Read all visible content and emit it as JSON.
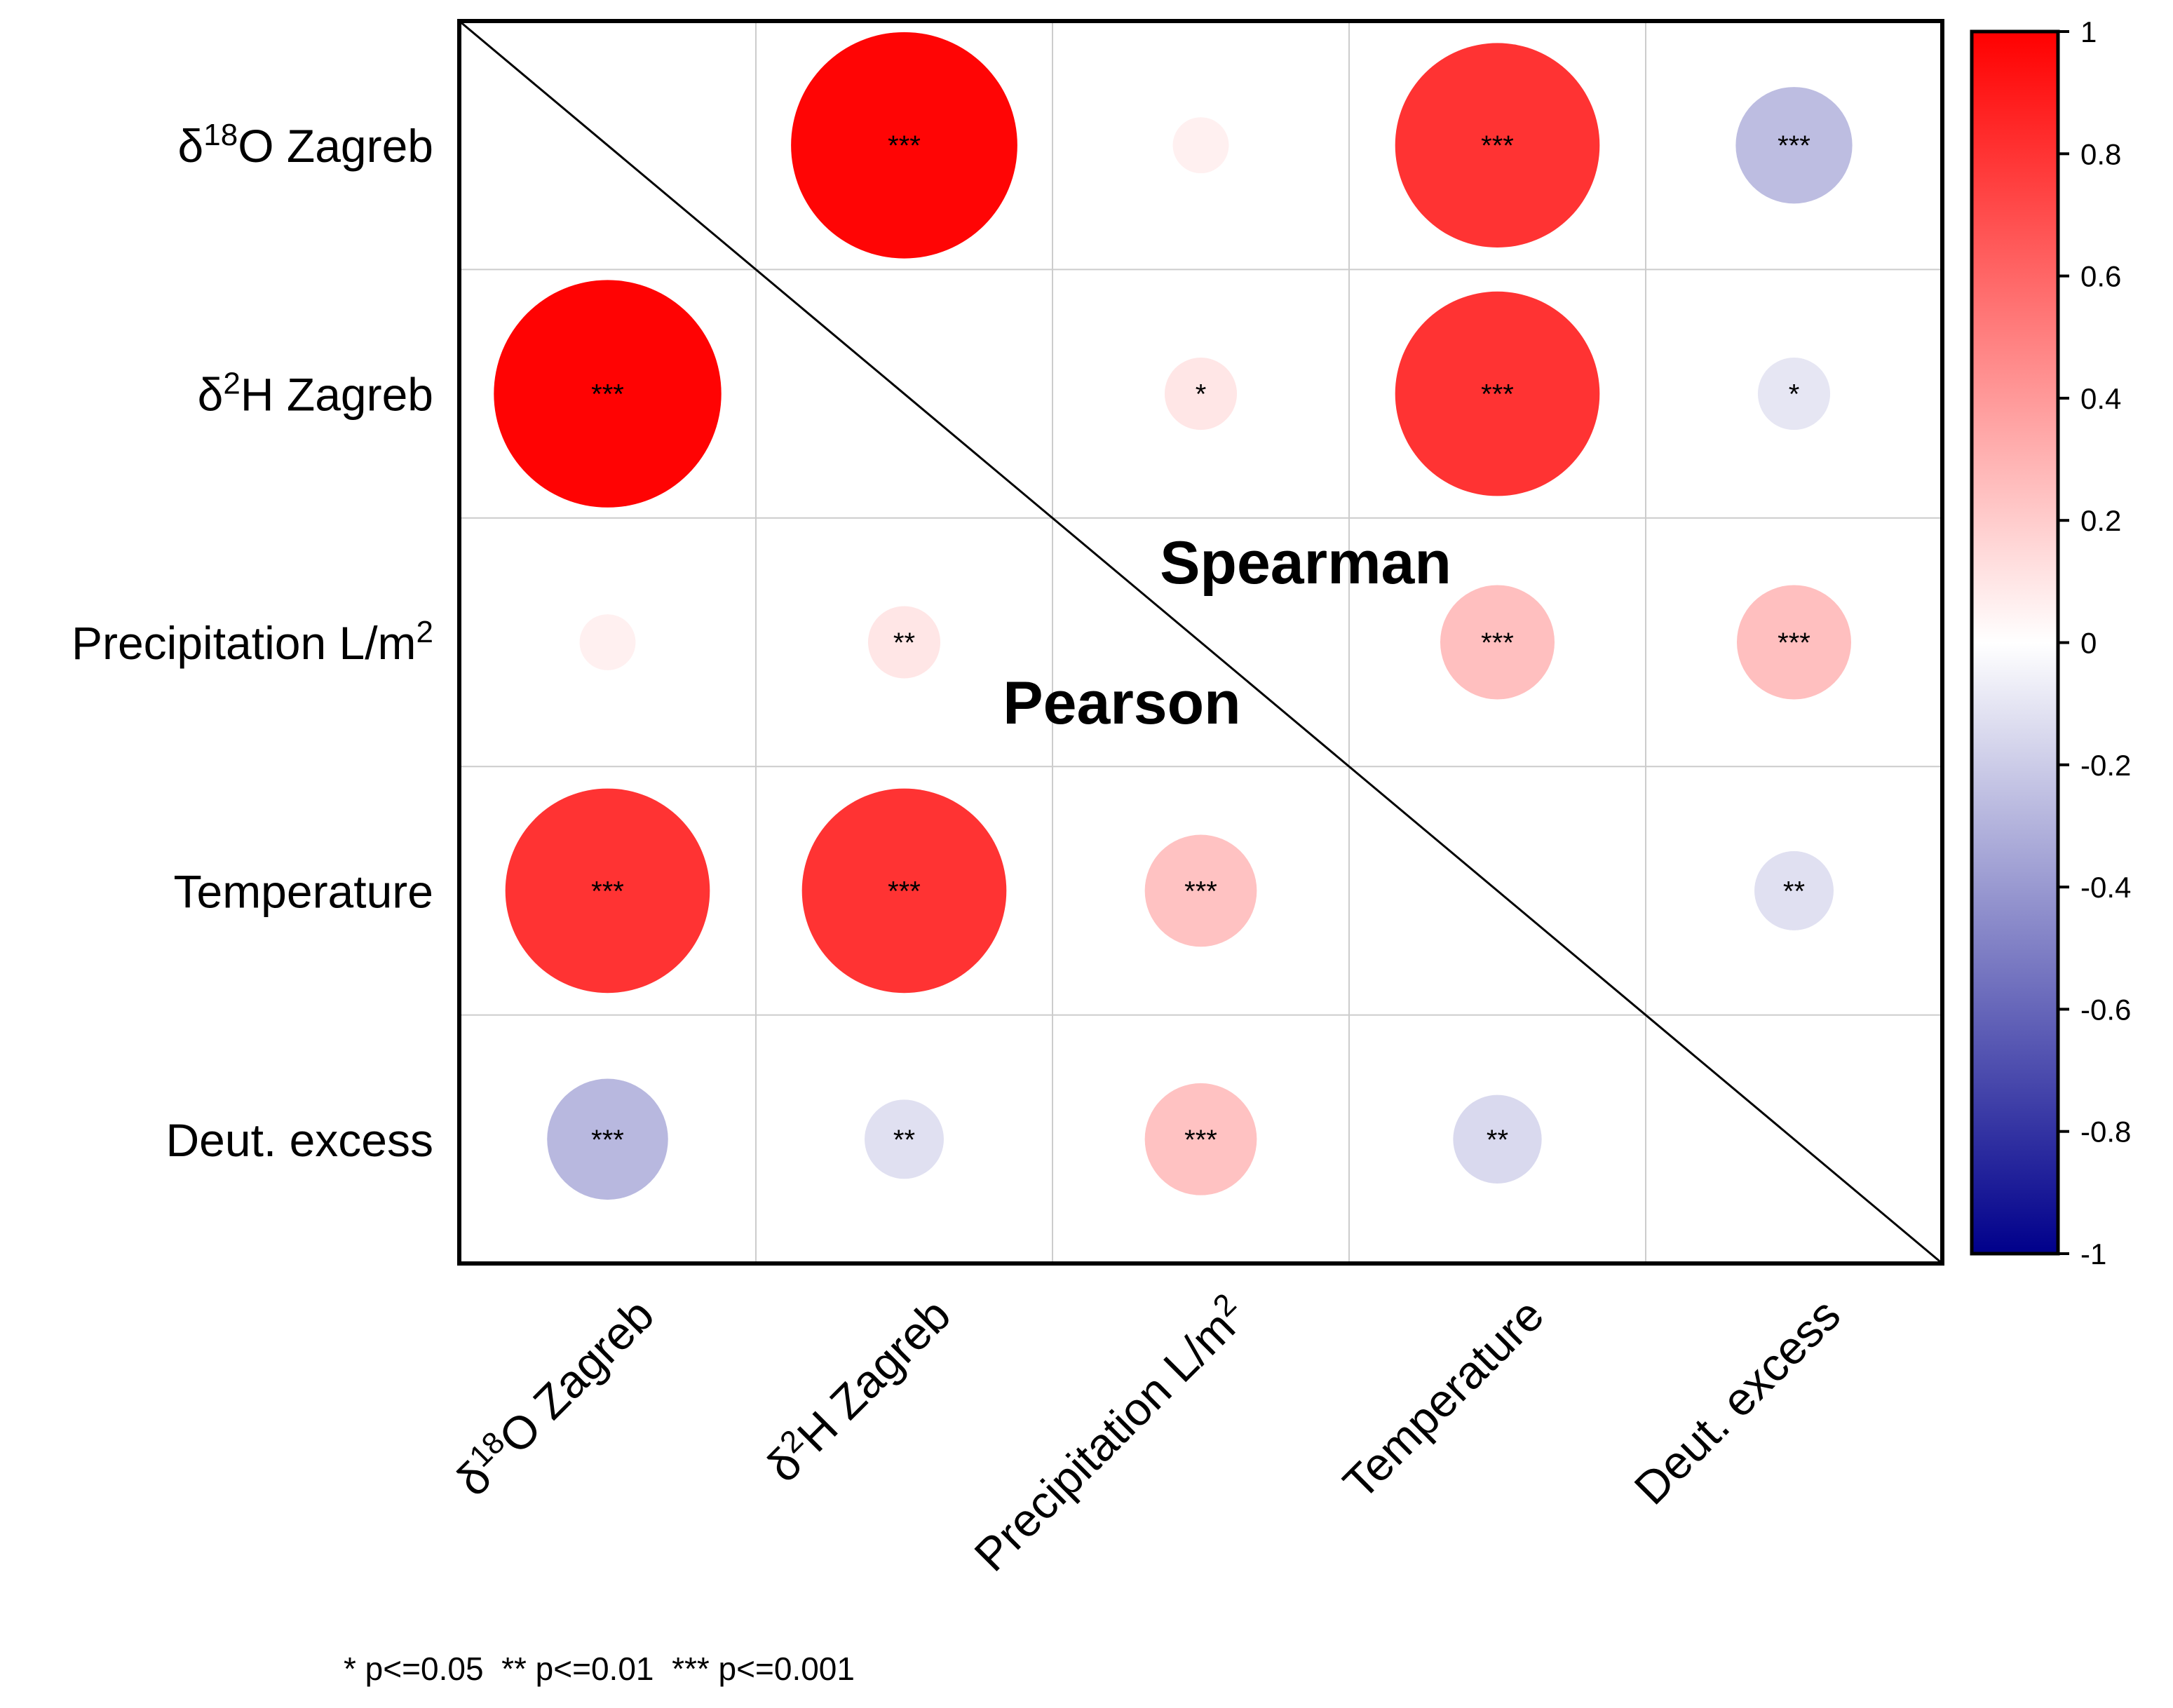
{
  "chart_data": {
    "type": "heatmap",
    "variables": [
      {
        "base": "δ",
        "sup": "18",
        "rest": "O Zagreb"
      },
      {
        "base": "δ",
        "sup": "2",
        "rest": "H Zagreb"
      },
      {
        "base": "Precipitation L/m",
        "sup": "2",
        "rest": ""
      },
      {
        "base": "Temperature",
        "sup": "",
        "rest": ""
      },
      {
        "base": "Deut. excess",
        "sup": "",
        "rest": ""
      }
    ],
    "upper_triangle_label": "Spearman",
    "lower_triangle_label": "Pearson",
    "cells": [
      {
        "row": 0,
        "col": 1,
        "r": 0.98,
        "sig": "***"
      },
      {
        "row": 0,
        "col": 2,
        "r": 0.06,
        "sig": ""
      },
      {
        "row": 0,
        "col": 3,
        "r": 0.8,
        "sig": "***"
      },
      {
        "row": 0,
        "col": 4,
        "r": -0.26,
        "sig": "***"
      },
      {
        "row": 1,
        "col": 2,
        "r": 0.1,
        "sig": "*"
      },
      {
        "row": 1,
        "col": 3,
        "r": 0.8,
        "sig": "***"
      },
      {
        "row": 1,
        "col": 4,
        "r": -0.1,
        "sig": "*"
      },
      {
        "row": 2,
        "col": 3,
        "r": 0.25,
        "sig": "***"
      },
      {
        "row": 2,
        "col": 4,
        "r": 0.25,
        "sig": "***"
      },
      {
        "row": 1,
        "col": 0,
        "r": 0.99,
        "sig": "***"
      },
      {
        "row": 2,
        "col": 0,
        "r": 0.06,
        "sig": ""
      },
      {
        "row": 2,
        "col": 1,
        "r": 0.1,
        "sig": "**"
      },
      {
        "row": 3,
        "col": 0,
        "r": 0.8,
        "sig": "***"
      },
      {
        "row": 3,
        "col": 1,
        "r": 0.8,
        "sig": "***"
      },
      {
        "row": 3,
        "col": 2,
        "r": 0.24,
        "sig": "***"
      },
      {
        "row": 3,
        "col": 4,
        "r": -0.12,
        "sig": "**"
      },
      {
        "row": 4,
        "col": 0,
        "r": -0.28,
        "sig": "***"
      },
      {
        "row": 4,
        "col": 1,
        "r": -0.12,
        "sig": "**"
      },
      {
        "row": 4,
        "col": 2,
        "r": 0.24,
        "sig": "***"
      },
      {
        "row": 4,
        "col": 3,
        "r": -0.15,
        "sig": "**"
      }
    ],
    "colorbar": {
      "min": -1,
      "max": 1,
      "ticks": [
        "1",
        "0.8",
        "0.6",
        "0.4",
        "0.2",
        "0",
        "-0.2",
        "-0.4",
        "-0.6",
        "-0.8",
        "-1"
      ],
      "colors": {
        "negative": "#00008b",
        "zero": "#ffffff",
        "positive": "#ff0000"
      }
    },
    "significance_note": "* p<=0.05  ** p<=0.01  *** p<=0.001",
    "grid": true
  }
}
